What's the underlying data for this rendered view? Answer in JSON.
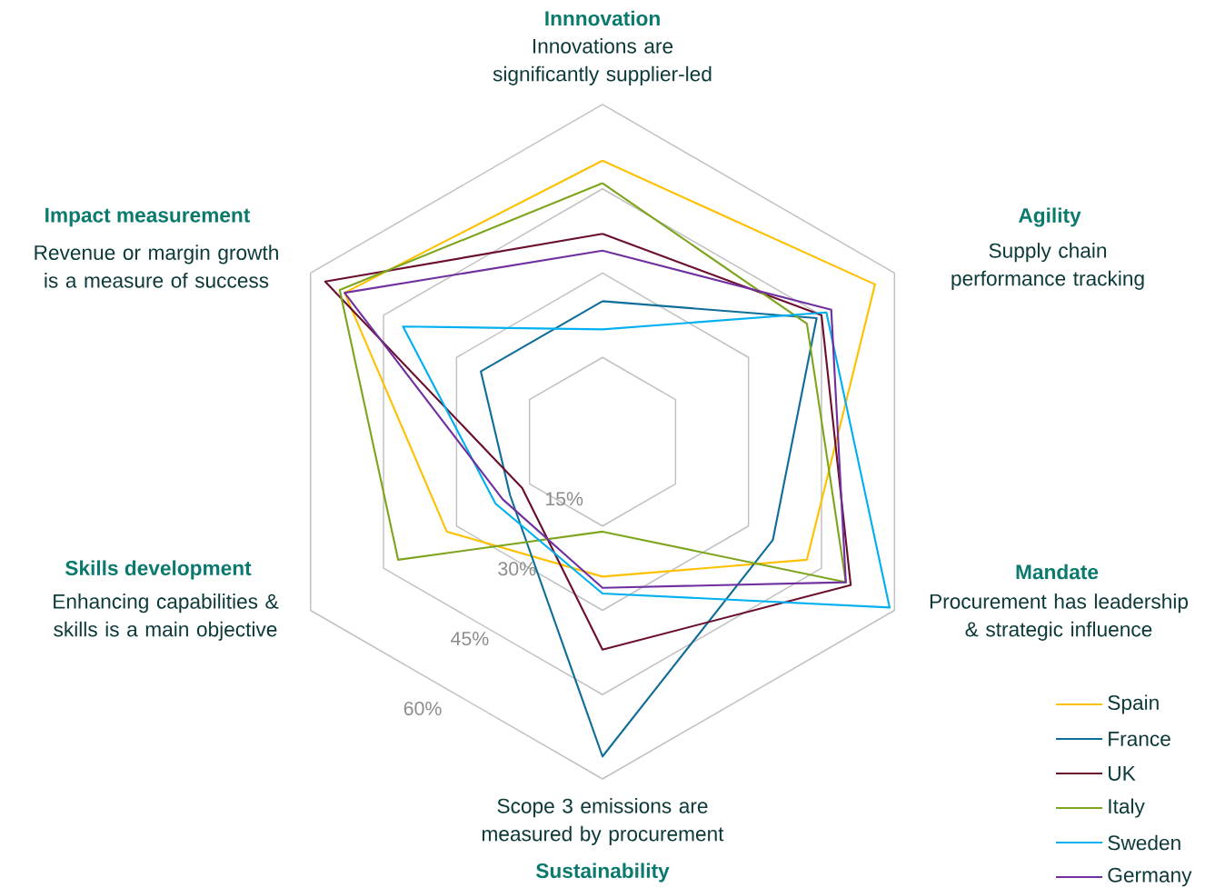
{
  "chart_data": {
    "type": "radar",
    "categories": [
      "Innnovation",
      "Agility",
      "Mandate",
      "Sustainability",
      "Skills development",
      "Impact measurement"
    ],
    "annotations": [
      "Innovations are significantly supplier-led",
      "Supply chain performance tracking",
      "Procurement has leadership & strategic influence",
      "Scope 3 emissions are measured by procurement",
      "Enhancing capabilities & skills is a main objective",
      "Revenue or margin growth is a measure of success"
    ],
    "series": [
      {
        "name": "Spain",
        "color": "#ffc000",
        "values": [
          50,
          56,
          42,
          24,
          32,
          53
        ]
      },
      {
        "name": "France",
        "color": "#0f6e99",
        "values": [
          25,
          44,
          35,
          56,
          19,
          25
        ]
      },
      {
        "name": "UK",
        "color": "#6b0f2f",
        "values": [
          37,
          45,
          51,
          37,
          16.5,
          57
        ]
      },
      {
        "name": "Italy",
        "color": "#7fa51e",
        "values": [
          46,
          42,
          50,
          16,
          42,
          54
        ]
      },
      {
        "name": "Sweden",
        "color": "#00b0f0",
        "values": [
          20,
          46,
          59,
          27,
          22,
          41
        ]
      },
      {
        "name": "Germany",
        "color": "#7030a0",
        "values": [
          34,
          47,
          50,
          26,
          20.5,
          53
        ]
      }
    ],
    "ylim": [
      0,
      60
    ],
    "yticks": [
      {
        "value": 15,
        "label": "15%"
      },
      {
        "value": 30,
        "label": "30%"
      },
      {
        "value": 45,
        "label": "45%"
      },
      {
        "value": 60,
        "label": "60%"
      }
    ],
    "grid": true,
    "legend": "bottom right"
  }
}
